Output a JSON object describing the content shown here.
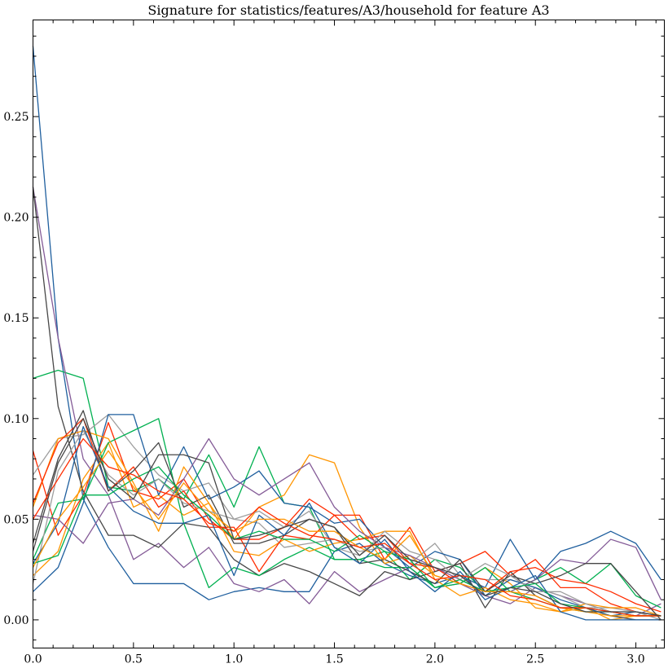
{
  "chart_data": {
    "type": "line",
    "title": "Signature for statistics/features/A3/household for feature A3",
    "xlabel": "",
    "ylabel": "",
    "xlim": [
      0,
      3.1416
    ],
    "ylim": [
      -0.014,
      0.298
    ],
    "x_ticks": [
      0.0,
      0.5,
      1.0,
      1.5,
      2.0,
      2.5,
      3.0
    ],
    "x_tick_labels": [
      "0.0",
      "0.5",
      "1.0",
      "1.5",
      "2.0",
      "2.5",
      "3.0"
    ],
    "y_ticks": [
      0.0,
      0.05,
      0.1,
      0.15,
      0.2,
      0.25
    ],
    "y_tick_labels": [
      "0.00",
      "0.05",
      "0.10",
      "0.15",
      "0.20",
      "0.25"
    ],
    "grid": false,
    "legend": "none",
    "x": [
      0,
      0.125,
      0.25,
      0.375,
      0.5,
      0.625,
      0.75,
      0.875,
      1.0,
      1.125,
      1.25,
      1.375,
      1.5,
      1.625,
      1.75,
      1.875,
      2.0,
      2.125,
      2.25,
      2.375,
      2.5,
      2.625,
      2.75,
      2.875,
      3.0,
      3.125
    ],
    "series": [
      {
        "color": "#1f5f9e",
        "values": [
          0.285,
          0.14,
          0.06,
          0.036,
          0.018,
          0.018,
          0.018,
          0.01,
          0.014,
          0.016,
          0.014,
          0.014,
          0.034,
          0.038,
          0.028,
          0.022,
          0.018,
          0.022,
          0.016,
          0.04,
          0.02,
          0.034,
          0.038,
          0.044,
          0.038,
          0.02
        ]
      },
      {
        "color": "#00b050",
        "values": [
          0.12,
          0.124,
          0.12,
          0.066,
          0.064,
          0.07,
          0.06,
          0.082,
          0.056,
          0.086,
          0.058,
          0.056,
          0.03,
          0.03,
          0.034,
          0.02,
          0.03,
          0.026,
          0.014,
          0.014,
          0.01,
          0.006,
          0.004,
          0.004,
          0.002,
          0.002
        ]
      },
      {
        "color": "#ff9500",
        "values": [
          0.022,
          0.034,
          0.07,
          0.088,
          0.056,
          0.062,
          0.052,
          0.058,
          0.04,
          0.056,
          0.062,
          0.082,
          0.078,
          0.046,
          0.028,
          0.032,
          0.022,
          0.018,
          0.026,
          0.018,
          0.006,
          0.004,
          0.006,
          0.0,
          0.002,
          0.002
        ]
      },
      {
        "color": "#ff2c00",
        "values": [
          0.084,
          0.042,
          0.062,
          0.098,
          0.064,
          0.06,
          0.07,
          0.05,
          0.04,
          0.04,
          0.046,
          0.06,
          0.052,
          0.052,
          0.03,
          0.046,
          0.024,
          0.028,
          0.034,
          0.022,
          0.03,
          0.016,
          0.016,
          0.008,
          0.004,
          0.002
        ]
      },
      {
        "color": "#845b97",
        "values": [
          0.215,
          0.14,
          0.08,
          0.062,
          0.03,
          0.038,
          0.026,
          0.036,
          0.018,
          0.014,
          0.02,
          0.008,
          0.024,
          0.014,
          0.02,
          0.026,
          0.016,
          0.018,
          0.012,
          0.008,
          0.016,
          0.012,
          0.008,
          0.004,
          0.002,
          0.008
        ]
      },
      {
        "color": "#474747",
        "values": [
          0.215,
          0.106,
          0.064,
          0.042,
          0.042,
          0.036,
          0.048,
          0.046,
          0.03,
          0.022,
          0.028,
          0.024,
          0.018,
          0.012,
          0.024,
          0.02,
          0.024,
          0.028,
          0.006,
          0.024,
          0.012,
          0.006,
          0.006,
          0.002,
          0.0,
          0.0
        ]
      },
      {
        "color": "#9e9e9e",
        "values": [
          0.072,
          0.09,
          0.092,
          0.102,
          0.086,
          0.072,
          0.064,
          0.068,
          0.05,
          0.048,
          0.036,
          0.038,
          0.04,
          0.034,
          0.036,
          0.028,
          0.038,
          0.022,
          0.02,
          0.02,
          0.016,
          0.012,
          0.006,
          0.006,
          0.004,
          0.002
        ]
      },
      {
        "color": "#1f5f9e",
        "values": [
          0.014,
          0.026,
          0.058,
          0.102,
          0.102,
          0.062,
          0.086,
          0.06,
          0.066,
          0.074,
          0.058,
          0.056,
          0.048,
          0.05,
          0.036,
          0.026,
          0.034,
          0.03,
          0.012,
          0.02,
          0.016,
          0.01,
          0.006,
          0.002,
          0.004,
          0.002
        ]
      },
      {
        "color": "#00b050",
        "values": [
          0.03,
          0.058,
          0.06,
          0.088,
          0.094,
          0.1,
          0.048,
          0.016,
          0.026,
          0.022,
          0.03,
          0.036,
          0.03,
          0.03,
          0.026,
          0.026,
          0.016,
          0.018,
          0.026,
          0.014,
          0.02,
          0.026,
          0.018,
          0.028,
          0.012,
          0.006
        ]
      },
      {
        "color": "#ff9500",
        "values": [
          0.056,
          0.09,
          0.094,
          0.09,
          0.068,
          0.044,
          0.076,
          0.058,
          0.034,
          0.032,
          0.04,
          0.034,
          0.038,
          0.04,
          0.044,
          0.044,
          0.02,
          0.012,
          0.016,
          0.01,
          0.008,
          0.004,
          0.008,
          0.006,
          0.006,
          0.002
        ]
      },
      {
        "color": "#ff2c00",
        "values": [
          0.058,
          0.088,
          0.1,
          0.064,
          0.076,
          0.056,
          0.064,
          0.046,
          0.046,
          0.024,
          0.042,
          0.04,
          0.052,
          0.04,
          0.042,
          0.028,
          0.026,
          0.018,
          0.014,
          0.024,
          0.026,
          0.02,
          0.018,
          0.014,
          0.008,
          0.004
        ]
      },
      {
        "color": "#845b97",
        "values": [
          0.052,
          0.05,
          0.038,
          0.058,
          0.06,
          0.052,
          0.07,
          0.09,
          0.07,
          0.062,
          0.07,
          0.078,
          0.056,
          0.044,
          0.036,
          0.032,
          0.026,
          0.02,
          0.014,
          0.014,
          0.02,
          0.03,
          0.028,
          0.04,
          0.036,
          0.01
        ]
      },
      {
        "color": "#474747",
        "values": [
          0.038,
          0.08,
          0.104,
          0.064,
          0.074,
          0.088,
          0.056,
          0.062,
          0.038,
          0.038,
          0.042,
          0.05,
          0.046,
          0.028,
          0.03,
          0.024,
          0.018,
          0.03,
          0.014,
          0.022,
          0.018,
          0.022,
          0.028,
          0.028,
          0.014,
          0.0
        ]
      },
      {
        "color": "#9e9e9e",
        "values": [
          0.018,
          0.074,
          0.094,
          0.072,
          0.062,
          0.07,
          0.058,
          0.054,
          0.05,
          0.054,
          0.046,
          0.054,
          0.036,
          0.032,
          0.044,
          0.034,
          0.03,
          0.02,
          0.028,
          0.022,
          0.014,
          0.014,
          0.008,
          0.004,
          0.004,
          0.0
        ]
      },
      {
        "color": "#1f5f9e",
        "values": [
          0.028,
          0.048,
          0.096,
          0.066,
          0.054,
          0.048,
          0.048,
          0.052,
          0.022,
          0.052,
          0.042,
          0.058,
          0.036,
          0.028,
          0.04,
          0.024,
          0.014,
          0.024,
          0.01,
          0.016,
          0.022,
          0.004,
          0.0,
          0.0,
          0.0,
          0.0
        ]
      },
      {
        "color": "#00b050",
        "values": [
          0.028,
          0.032,
          0.062,
          0.062,
          0.07,
          0.076,
          0.062,
          0.052,
          0.04,
          0.044,
          0.04,
          0.04,
          0.034,
          0.042,
          0.034,
          0.03,
          0.016,
          0.02,
          0.014,
          0.016,
          0.018,
          0.008,
          0.006,
          0.004,
          0.002,
          0.002
        ]
      },
      {
        "color": "#ff9500",
        "values": [
          0.026,
          0.05,
          0.066,
          0.084,
          0.066,
          0.05,
          0.068,
          0.054,
          0.044,
          0.05,
          0.05,
          0.044,
          0.044,
          0.036,
          0.03,
          0.042,
          0.022,
          0.018,
          0.014,
          0.014,
          0.012,
          0.006,
          0.004,
          0.002,
          0.002,
          0.002
        ]
      },
      {
        "color": "#ff2c00",
        "values": [
          0.05,
          0.07,
          0.09,
          0.076,
          0.072,
          0.064,
          0.06,
          0.048,
          0.044,
          0.056,
          0.048,
          0.042,
          0.04,
          0.036,
          0.038,
          0.028,
          0.02,
          0.022,
          0.02,
          0.012,
          0.01,
          0.006,
          0.006,
          0.004,
          0.002,
          0.002
        ]
      },
      {
        "color": "#474747",
        "values": [
          0.034,
          0.078,
          0.1,
          0.07,
          0.06,
          0.082,
          0.082,
          0.078,
          0.04,
          0.042,
          0.046,
          0.05,
          0.046,
          0.032,
          0.042,
          0.03,
          0.026,
          0.022,
          0.012,
          0.016,
          0.014,
          0.008,
          0.004,
          0.004,
          0.004,
          0.002
        ]
      }
    ]
  }
}
